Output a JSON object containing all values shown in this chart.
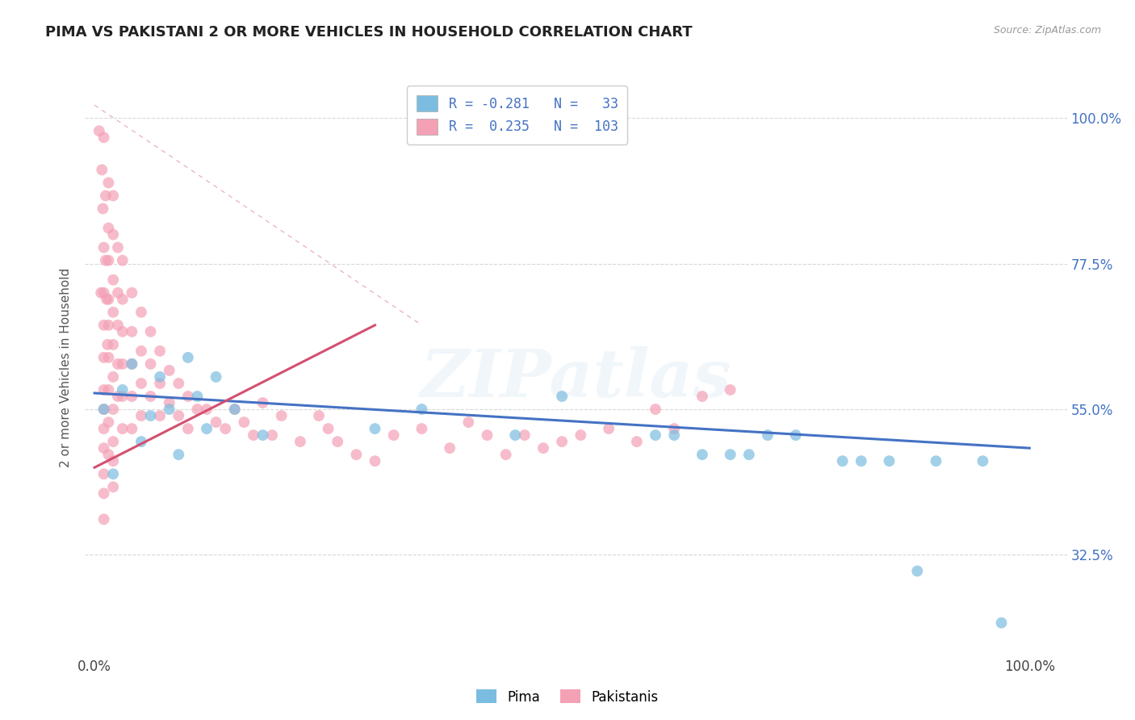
{
  "title": "PIMA VS PAKISTANI 2 OR MORE VEHICLES IN HOUSEHOLD CORRELATION CHART",
  "source": "Source: ZipAtlas.com",
  "ylabel": "2 or more Vehicles in Household",
  "watermark": "ZIPatlas",
  "xlim": [
    -0.01,
    1.04
  ],
  "ylim": [
    0.17,
    1.06
  ],
  "yticks": [
    0.325,
    0.55,
    0.775,
    1.0
  ],
  "ytick_labels": [
    "32.5%",
    "55.0%",
    "77.5%",
    "100.0%"
  ],
  "xtick_labels": [
    "0.0%",
    "100.0%"
  ],
  "pima_color": "#7bbde0",
  "pakistani_color": "#f4a0b5",
  "pima_trend_color": "#4472c4",
  "pakistani_trend_color": "#d45070",
  "ref_line_color": "#e8b0bc",
  "background": "#ffffff",
  "grid_color": "#d8d8d8",
  "pima_R": -0.281,
  "pima_N": 33,
  "pakistani_R": 0.235,
  "pakistani_N": 103,
  "pima_x": [
    0.01,
    0.02,
    0.03,
    0.04,
    0.05,
    0.06,
    0.07,
    0.08,
    0.09,
    0.1,
    0.11,
    0.12,
    0.13,
    0.15,
    0.18,
    0.3,
    0.35,
    0.45,
    0.5,
    0.6,
    0.62,
    0.65,
    0.68,
    0.7,
    0.72,
    0.75,
    0.8,
    0.82,
    0.85,
    0.88,
    0.9,
    0.95,
    0.97
  ],
  "pima_y": [
    0.55,
    0.45,
    0.58,
    0.62,
    0.5,
    0.54,
    0.6,
    0.55,
    0.48,
    0.63,
    0.57,
    0.52,
    0.6,
    0.55,
    0.51,
    0.52,
    0.55,
    0.51,
    0.57,
    0.51,
    0.51,
    0.48,
    0.48,
    0.48,
    0.51,
    0.51,
    0.47,
    0.47,
    0.47,
    0.3,
    0.47,
    0.47,
    0.22
  ],
  "pak_x": [
    0.005,
    0.007,
    0.008,
    0.009,
    0.01,
    0.01,
    0.01,
    0.01,
    0.01,
    0.01,
    0.01,
    0.01,
    0.01,
    0.01,
    0.01,
    0.01,
    0.012,
    0.012,
    0.013,
    0.014,
    0.015,
    0.015,
    0.015,
    0.015,
    0.015,
    0.015,
    0.015,
    0.015,
    0.015,
    0.02,
    0.02,
    0.02,
    0.02,
    0.02,
    0.02,
    0.02,
    0.02,
    0.02,
    0.02,
    0.025,
    0.025,
    0.025,
    0.025,
    0.025,
    0.03,
    0.03,
    0.03,
    0.03,
    0.03,
    0.03,
    0.04,
    0.04,
    0.04,
    0.04,
    0.04,
    0.05,
    0.05,
    0.05,
    0.05,
    0.06,
    0.06,
    0.06,
    0.07,
    0.07,
    0.07,
    0.08,
    0.08,
    0.09,
    0.09,
    0.1,
    0.1,
    0.11,
    0.12,
    0.13,
    0.14,
    0.15,
    0.16,
    0.17,
    0.18,
    0.19,
    0.2,
    0.22,
    0.24,
    0.25,
    0.26,
    0.28,
    0.3,
    0.32,
    0.35,
    0.38,
    0.4,
    0.42,
    0.44,
    0.46,
    0.48,
    0.5,
    0.52,
    0.55,
    0.58,
    0.6,
    0.62,
    0.65,
    0.68
  ],
  "pak_y": [
    0.98,
    0.73,
    0.92,
    0.86,
    0.97,
    0.8,
    0.73,
    0.68,
    0.63,
    0.58,
    0.55,
    0.52,
    0.49,
    0.45,
    0.42,
    0.38,
    0.88,
    0.78,
    0.72,
    0.65,
    0.9,
    0.83,
    0.78,
    0.72,
    0.68,
    0.63,
    0.58,
    0.53,
    0.48,
    0.88,
    0.82,
    0.75,
    0.7,
    0.65,
    0.6,
    0.55,
    0.5,
    0.47,
    0.43,
    0.8,
    0.73,
    0.68,
    0.62,
    0.57,
    0.78,
    0.72,
    0.67,
    0.62,
    0.57,
    0.52,
    0.73,
    0.67,
    0.62,
    0.57,
    0.52,
    0.7,
    0.64,
    0.59,
    0.54,
    0.67,
    0.62,
    0.57,
    0.64,
    0.59,
    0.54,
    0.61,
    0.56,
    0.59,
    0.54,
    0.57,
    0.52,
    0.55,
    0.55,
    0.53,
    0.52,
    0.55,
    0.53,
    0.51,
    0.56,
    0.51,
    0.54,
    0.5,
    0.54,
    0.52,
    0.5,
    0.48,
    0.47,
    0.51,
    0.52,
    0.49,
    0.53,
    0.51,
    0.48,
    0.51,
    0.49,
    0.5,
    0.51,
    0.52,
    0.5,
    0.55,
    0.52,
    0.57,
    0.58
  ]
}
